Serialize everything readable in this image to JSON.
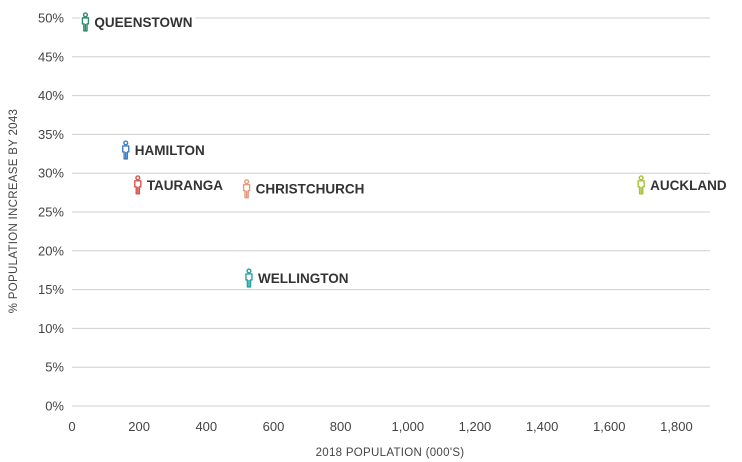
{
  "chart_data": {
    "type": "scatter",
    "xlabel": "2018 POPULATION (000'S)",
    "ylabel": "% POPULATION INCREASE BY 2043",
    "xlim": [
      0,
      1900
    ],
    "ylim": [
      0,
      50
    ],
    "x_ticks": [
      {
        "value": 0,
        "label": "0"
      },
      {
        "value": 200,
        "label": "200"
      },
      {
        "value": 400,
        "label": "400"
      },
      {
        "value": 600,
        "label": "600"
      },
      {
        "value": 800,
        "label": "800"
      },
      {
        "value": 1000,
        "label": "1,000"
      },
      {
        "value": 1200,
        "label": "1,200"
      },
      {
        "value": 1400,
        "label": "1,400"
      },
      {
        "value": 1600,
        "label": "1,600"
      },
      {
        "value": 1800,
        "label": "1,800"
      }
    ],
    "y_ticks": [
      {
        "value": 50,
        "label": "50%"
      },
      {
        "value": 45,
        "label": "45%"
      },
      {
        "value": 40,
        "label": "40%"
      },
      {
        "value": 35,
        "label": "35%"
      },
      {
        "value": 30,
        "label": "30%"
      },
      {
        "value": 25,
        "label": "25%"
      },
      {
        "value": 20,
        "label": "20%"
      },
      {
        "value": 15,
        "label": "15%"
      },
      {
        "value": 10,
        "label": "10%"
      },
      {
        "value": 5,
        "label": "5%"
      },
      {
        "value": 0,
        "label": "0%"
      }
    ],
    "grid": true,
    "marker": "person-icon",
    "points": [
      {
        "name": "QUEENSTOWN",
        "x": 40,
        "y": 49.5,
        "color": "#2e8b6e"
      },
      {
        "name": "HAMILTON",
        "x": 160,
        "y": 33,
        "color": "#3f7fbf"
      },
      {
        "name": "TAURANGA",
        "x": 196,
        "y": 28.5,
        "color": "#d9534f"
      },
      {
        "name": "CHRISTCHURCH",
        "x": 520,
        "y": 28,
        "color": "#e89b7a"
      },
      {
        "name": "AUCKLAND",
        "x": 1695,
        "y": 28.5,
        "color": "#a8c23a"
      },
      {
        "name": "WELLINGTON",
        "x": 527,
        "y": 16.5,
        "color": "#2aa1a8"
      }
    ]
  }
}
